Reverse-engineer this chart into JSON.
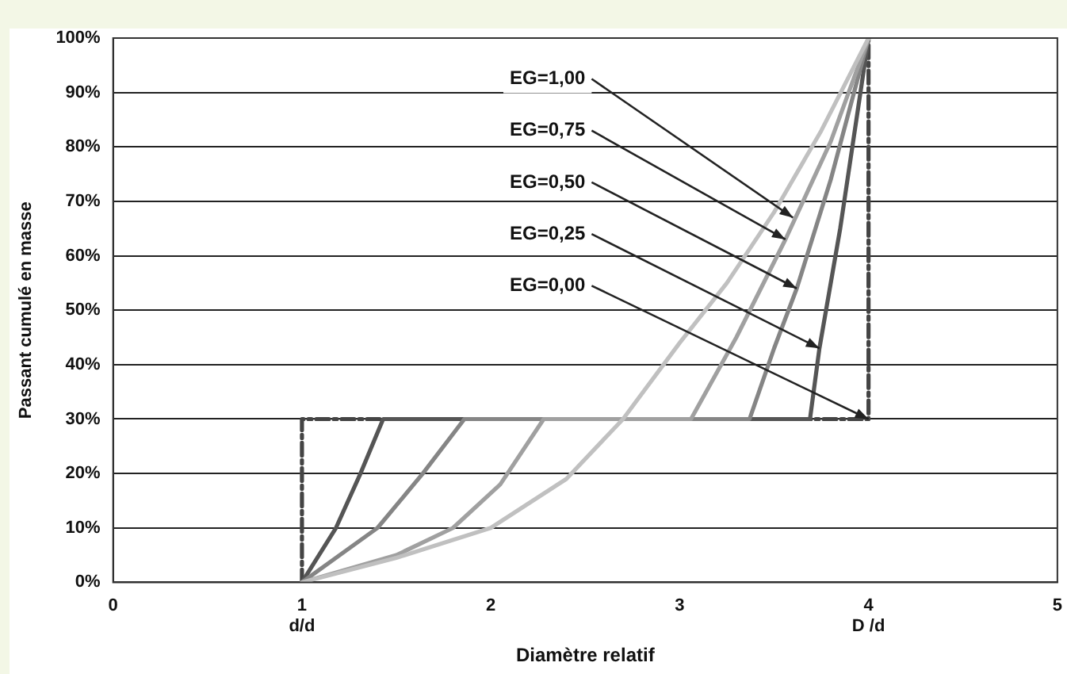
{
  "chart_data": {
    "type": "line",
    "xlabel": "Diamètre relatif",
    "ylabel": "Passant cumulé en masse",
    "xlim": [
      0,
      5
    ],
    "xticks": [
      0,
      {
        "value": 1,
        "label": "1\nd/d"
      },
      2,
      3,
      {
        "value": 4,
        "label": "4\nD /d"
      },
      5
    ],
    "ylim": [
      0,
      100
    ],
    "yticks": [
      {
        "value": 0,
        "label": "0%"
      },
      {
        "value": 10,
        "label": "10%"
      },
      {
        "value": 20,
        "label": "20%"
      },
      {
        "value": 30,
        "label": "30%"
      },
      {
        "value": 40,
        "label": "40%"
      },
      {
        "value": 50,
        "label": "50%"
      },
      {
        "value": 60,
        "label": "60%"
      },
      {
        "value": 70,
        "label": "70%"
      },
      {
        "value": 80,
        "label": "80%"
      },
      {
        "value": 90,
        "label": "90%"
      },
      {
        "value": 100,
        "label": "100%"
      }
    ],
    "grid": "y",
    "legend": false,
    "marker": "none",
    "series": [
      {
        "color": "#c0c0c0",
        "x": [
          1,
          1.5,
          2,
          2.4,
          2.7,
          3,
          3.25,
          3.5,
          3.75,
          4
        ],
        "values": [
          0,
          4.5,
          10,
          19,
          30,
          44,
          55,
          68,
          83,
          100
        ]
      },
      {
        "color": "#a0a0a0",
        "x": [
          1,
          1.5,
          1.8,
          2.05,
          2.28,
          3.06,
          3.3,
          3.56,
          3.8,
          4
        ],
        "values": [
          0,
          5,
          10,
          18,
          30,
          30,
          45,
          63,
          81,
          100
        ]
      },
      {
        "color": "#858585",
        "x": [
          1,
          1.4,
          1.64,
          1.86,
          3.37,
          3.5,
          3.62,
          3.8,
          4
        ],
        "values": [
          0,
          10,
          20,
          30,
          30,
          43,
          54,
          74,
          100
        ]
      },
      {
        "color": "#555555",
        "x": [
          1,
          1.18,
          1.31,
          1.43,
          3.69,
          3.74,
          3.85,
          4
        ],
        "values": [
          0,
          10,
          20,
          30,
          30,
          43,
          65,
          100
        ]
      },
      {
        "color": "#444444",
        "line_style": "dashed",
        "x": [
          1,
          1,
          4,
          4
        ],
        "values": [
          0,
          30,
          30,
          100
        ]
      }
    ],
    "annotations": [
      {
        "text": "EG=1,00",
        "x": 3.6,
        "y": 67
      },
      {
        "text": "EG=0,75",
        "x": 3.56,
        "y": 63
      },
      {
        "text": "EG=0,50",
        "x": 3.62,
        "y": 54
      },
      {
        "text": "EG=0,25",
        "x": 3.74,
        "y": 43
      },
      {
        "text": "EG=0,00",
        "x": 4,
        "y": 30
      }
    ]
  }
}
